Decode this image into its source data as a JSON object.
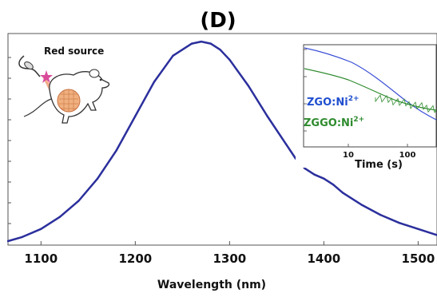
{
  "chart_data": {
    "type": "line",
    "title": "(D)",
    "xlabel": "Wavelength (nm)",
    "ylabel": "",
    "xlim": [
      1065,
      1520
    ],
    "ylim": [
      0,
      1.05
    ],
    "x_ticks": [
      1100,
      1200,
      1300,
      1400,
      1500
    ],
    "x_tick_labels": [
      "1100",
      "1200",
      "1300",
      "1400",
      "1500"
    ],
    "series": [
      {
        "name": "",
        "color": "#2b2f9c",
        "x": [
          1065,
          1080,
          1100,
          1120,
          1140,
          1160,
          1180,
          1200,
          1220,
          1240,
          1260,
          1270,
          1280,
          1290,
          1300,
          1320,
          1340,
          1360,
          1370,
          1380,
          1390,
          1400,
          1410,
          1420,
          1440,
          1460,
          1480,
          1500,
          1520
        ],
        "values": [
          0.02,
          0.04,
          0.08,
          0.14,
          0.22,
          0.33,
          0.47,
          0.64,
          0.81,
          0.94,
          1.0,
          1.01,
          1.0,
          0.97,
          0.92,
          0.79,
          0.64,
          0.5,
          0.43,
          0.38,
          0.35,
          0.33,
          0.3,
          0.26,
          0.2,
          0.15,
          0.11,
          0.08,
          0.05
        ]
      }
    ],
    "grid": false
  },
  "inset": {
    "xlabel": "Time (s)",
    "x_ticks": [
      "10",
      "100"
    ],
    "scale": "log-log",
    "series": [
      {
        "name": "ZGO:Ni",
        "superscript": "2+",
        "color": "#1f4ecf"
      },
      {
        "name": "ZGGO:Ni",
        "superscript": "2+",
        "color": "#2e8b2e"
      }
    ]
  },
  "illustration": {
    "label": "Red source",
    "icons": [
      "mouse-icon",
      "laser-pointer-icon",
      "star-icon",
      "tumor-icon"
    ]
  }
}
